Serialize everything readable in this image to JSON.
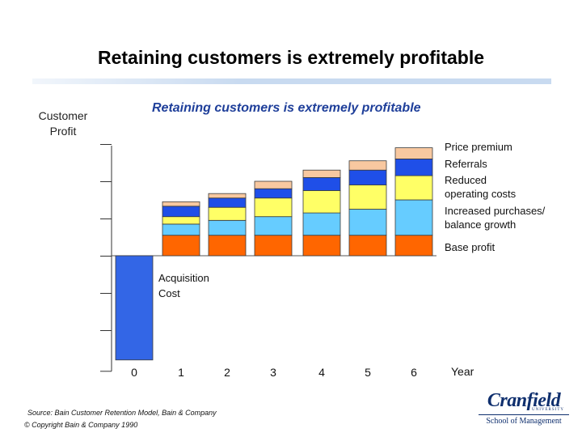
{
  "slide": {
    "title": "Retaining customers is extremely profitable"
  },
  "chart_data": {
    "type": "bar",
    "stacked": true,
    "title": "Retaining customers is extremely profitable",
    "ylabel": "Customer Profit",
    "xlabel": "Year",
    "categories": [
      "0",
      "1",
      "2",
      "3",
      "4",
      "5",
      "6"
    ],
    "series": [
      {
        "name": "Acquisition Cost",
        "color": "#3366e6",
        "values": [
          -2.8,
          0,
          0,
          0,
          0,
          0,
          0
        ]
      },
      {
        "name": "Base profit",
        "color": "#ff6600",
        "values": [
          0,
          0.55,
          0.55,
          0.55,
          0.55,
          0.55,
          0.55
        ]
      },
      {
        "name": "Increased purchases/ balance growth",
        "color": "#66ccff",
        "values": [
          0,
          0.3,
          0.4,
          0.5,
          0.6,
          0.7,
          0.95
        ]
      },
      {
        "name": "Reduced operating costs",
        "color": "#ffff66",
        "values": [
          0,
          0.2,
          0.35,
          0.5,
          0.6,
          0.65,
          0.65
        ]
      },
      {
        "name": "Referrals",
        "color": "#1f4fe8",
        "values": [
          0,
          0.28,
          0.25,
          0.25,
          0.35,
          0.4,
          0.45
        ]
      },
      {
        "name": "Price premium",
        "color": "#f8c8a0",
        "values": [
          0,
          0.12,
          0.12,
          0.2,
          0.2,
          0.25,
          0.3
        ]
      }
    ],
    "ylim": [
      -2.8,
      3
    ],
    "legend": "right",
    "grid": false
  },
  "legend_labels": {
    "price_premium": "Price premium",
    "referrals": "Referrals",
    "reduced_line1": "Reduced",
    "reduced_line2": "operating costs",
    "increased_line1": "Increased purchases/",
    "increased_line2": "balance growth",
    "base_profit": "Base profit"
  },
  "annotation": {
    "line1": "Acquisition",
    "line2": "Cost"
  },
  "axis": {
    "ylabel_line1": "Customer",
    "ylabel_line2": "Profit",
    "xlabel": "Year"
  },
  "footer": {
    "source": "Source:  Bain Customer Retention Model, Bain & Company",
    "copyright": "© Copyright Bain & Company 1990"
  },
  "logo": {
    "name": "Cranfield",
    "university": "UNIVERSITY",
    "school": "School of Management"
  }
}
